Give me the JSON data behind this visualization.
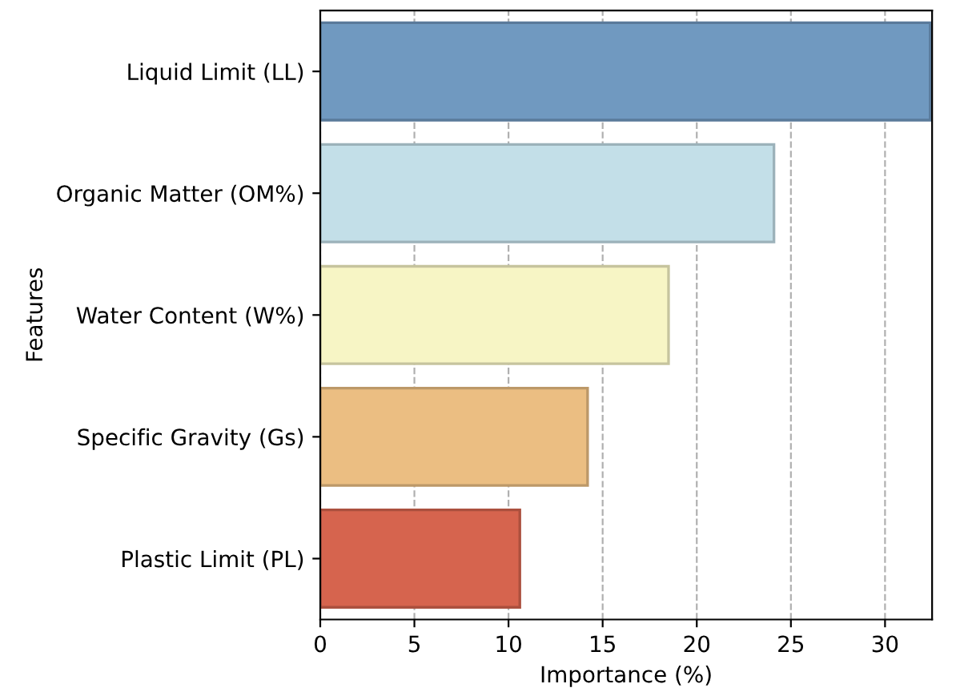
{
  "chart_data": {
    "type": "bar",
    "orientation": "horizontal",
    "xlabel": "Importance (%)",
    "ylabel": "Features",
    "categories": [
      "Liquid Limit (LL)",
      "Organic Matter (OM%)",
      "Water Content (W%)",
      "Specific Gravity (Gs)",
      "Plastic Limit (PL)"
    ],
    "values": [
      32.4,
      24.1,
      18.5,
      14.2,
      10.6
    ],
    "colors": [
      "#7099c0",
      "#c3dfe8",
      "#f7f5c5",
      "#ebbe82",
      "#d6644e"
    ],
    "xlim": [
      0,
      32.5
    ],
    "xticks": [
      0,
      5,
      10,
      15,
      20,
      25,
      30
    ],
    "grid": "x"
  }
}
